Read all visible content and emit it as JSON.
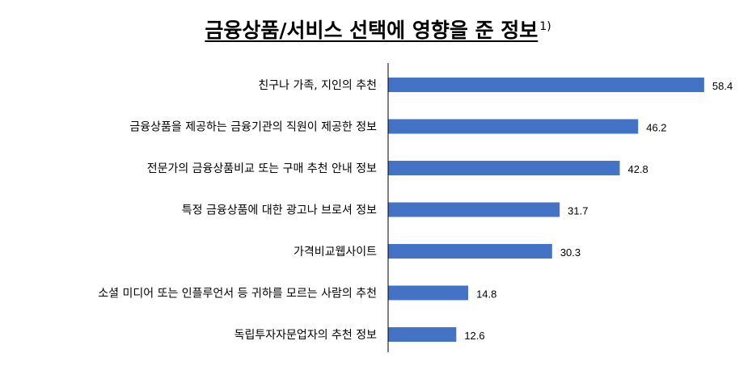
{
  "chart_data": {
    "type": "bar",
    "orientation": "horizontal",
    "title": "금융상품/서비스 선택에 영향을 준 정보",
    "title_footnote": "1)",
    "categories": [
      "친구나 가족, 지인의 추천",
      "금융상품을 제공하는 금융기관의 직원이 제공한 정보",
      "전문가의 금융상품비교 또는 구매 추천 안내 정보",
      "특정 금융상품에 대한 광고나 브로셔 정보",
      "가격비교웹사이트",
      "소셜 미디어 또는 인플루언서 등 귀하를 모르는 사람의 추천",
      "독립투자자문업자의 추천 정보"
    ],
    "values": [
      58.4,
      46.2,
      42.8,
      31.7,
      30.3,
      14.8,
      12.6
    ],
    "value_labels": [
      "58.4",
      "46.2",
      "42.8",
      "31.7",
      "30.3",
      "14.8",
      "12.6"
    ],
    "xlim": [
      0,
      62
    ],
    "grid": false,
    "legend": "none",
    "bar_color": "#4472c4"
  }
}
